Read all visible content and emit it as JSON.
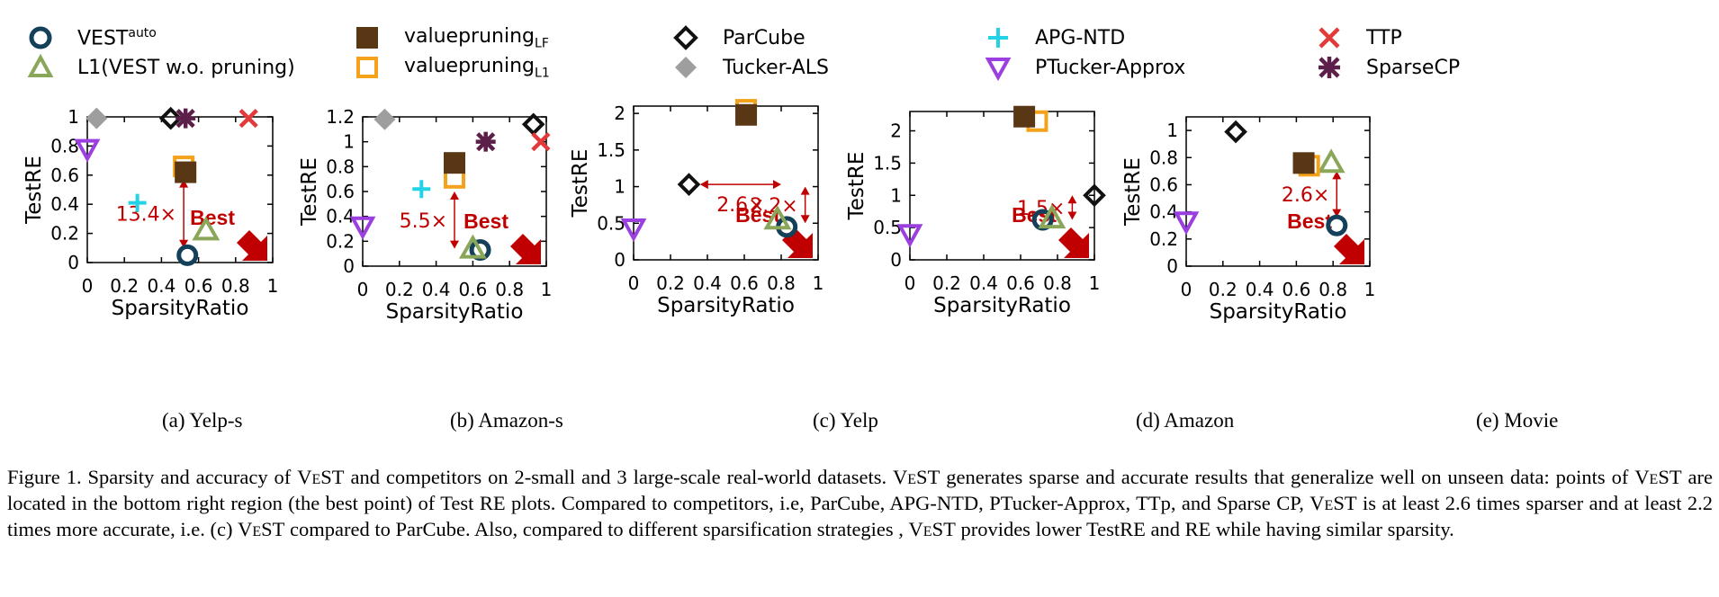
{
  "legend": {
    "vest_auto": {
      "base": "VEST",
      "sup": "auto"
    },
    "l1": "L1(VEST w.o. pruning)",
    "vp_lf": {
      "base": "valuepruning",
      "sub": "LF"
    },
    "vp_l1": {
      "base": "valuepruning",
      "sub": "L1"
    },
    "parcube": "ParCube",
    "tucker_als": "Tucker-ALS",
    "apg_ntd": "APG-NTD",
    "ptucker": "PTucker-Approx",
    "ttp": "TTP",
    "sparsecp": "SparseCP"
  },
  "colors": {
    "vest_auto": "#14405a",
    "l1": "#8aa659",
    "vp_lf": "#5a3714",
    "vp_l1": "#f4a21c",
    "parcube": "#111111",
    "tucker_als": "#9e9e9e",
    "apg_ntd": "#22d3e6",
    "ptucker": "#9b3fe0",
    "ttp": "#e23a3a",
    "sparsecp": "#5c1f4a",
    "annotation": "#c00000"
  },
  "chart_data": [
    {
      "type": "scatter",
      "caption": "(a) Yelp-s",
      "xlabel": "SparsityRatio",
      "ylabel": "TestRE",
      "xlim": [
        0,
        1
      ],
      "ylim": [
        0,
        1
      ],
      "xticks": [
        "0",
        "0.2",
        "0.4",
        "0.6",
        "0.8",
        "1"
      ],
      "yticks": [
        "0",
        "0.2",
        "0.4",
        "0.6",
        "0.8",
        "1"
      ],
      "points": [
        {
          "series": "vest_auto",
          "x": 0.54,
          "y": 0.05
        },
        {
          "series": "l1",
          "x": 0.64,
          "y": 0.22
        },
        {
          "series": "vp_l1",
          "x": 0.52,
          "y": 0.66
        },
        {
          "series": "vp_lf",
          "x": 0.53,
          "y": 0.62
        },
        {
          "series": "parcube",
          "x": 0.45,
          "y": 0.99
        },
        {
          "series": "sparsecp",
          "x": 0.53,
          "y": 0.99
        },
        {
          "series": "tucker_als",
          "x": 0.05,
          "y": 0.99
        },
        {
          "series": "ttp",
          "x": 0.87,
          "y": 0.99
        },
        {
          "series": "apg_ntd",
          "x": 0.27,
          "y": 0.41
        },
        {
          "series": "ptucker",
          "x": 0.0,
          "y": 0.78
        }
      ],
      "annotations": [
        {
          "label": "13.4×",
          "type": "vertical",
          "x": 0.52,
          "y1": 0.57,
          "y2": 0.1
        }
      ],
      "best": {
        "label": "Best"
      }
    },
    {
      "type": "scatter",
      "caption": "(b) Amazon-s",
      "xlabel": "SparsityRatio",
      "ylabel": "TestRE",
      "xlim": [
        0,
        1
      ],
      "ylim": [
        0,
        1.2
      ],
      "xticks": [
        "0",
        "0.2",
        "0.4",
        "0.6",
        "0.8",
        "1"
      ],
      "yticks": [
        "0",
        "0.2",
        "0.4",
        "0.6",
        "0.8",
        "1",
        "1.2"
      ],
      "points": [
        {
          "series": "vest_auto",
          "x": 0.64,
          "y": 0.13
        },
        {
          "series": "l1",
          "x": 0.6,
          "y": 0.14
        },
        {
          "series": "vp_l1",
          "x": 0.5,
          "y": 0.71
        },
        {
          "series": "vp_lf",
          "x": 0.5,
          "y": 0.83
        },
        {
          "series": "parcube",
          "x": 0.93,
          "y": 1.14
        },
        {
          "series": "sparsecp",
          "x": 0.67,
          "y": 1.0
        },
        {
          "series": "tucker_als",
          "x": 0.12,
          "y": 1.18
        },
        {
          "series": "ttp",
          "x": 0.97,
          "y": 1.0
        },
        {
          "series": "apg_ntd",
          "x": 0.32,
          "y": 0.62
        },
        {
          "series": "ptucker",
          "x": 0.0,
          "y": 0.32
        }
      ],
      "annotations": [
        {
          "label": "5.5×",
          "type": "vertical",
          "x": 0.5,
          "y1": 0.6,
          "y2": 0.14
        }
      ],
      "best": {
        "label": "Best"
      }
    },
    {
      "type": "scatter",
      "caption": "(c) Yelp",
      "xlabel": "SparsityRatio",
      "ylabel": "TestRE",
      "xlim": [
        0,
        1
      ],
      "ylim": [
        0,
        2.1
      ],
      "xticks": [
        "0",
        "0.2",
        "0.4",
        "0.6",
        "0.8",
        "1"
      ],
      "yticks": [
        "0",
        "0.5",
        "1",
        "1.5",
        "2"
      ],
      "points": [
        {
          "series": "vest_auto",
          "x": 0.83,
          "y": 0.45
        },
        {
          "series": "l1",
          "x": 0.78,
          "y": 0.55
        },
        {
          "series": "vp_l1",
          "x": 0.61,
          "y": 2.05
        },
        {
          "series": "vp_lf",
          "x": 0.61,
          "y": 1.98
        },
        {
          "series": "parcube",
          "x": 0.3,
          "y": 1.03
        },
        {
          "series": "ptucker",
          "x": 0.0,
          "y": 0.43
        }
      ],
      "annotations": [
        {
          "label": "2.6×",
          "type": "horizontal",
          "y": 1.03,
          "x1": 0.36,
          "x2": 0.8
        },
        {
          "label": "2.2×",
          "type": "vertical",
          "x": 0.93,
          "y1": 1.0,
          "y2": 0.5
        }
      ],
      "best": {
        "label": "Best"
      }
    },
    {
      "type": "scatter",
      "caption": "(d) Amazon",
      "xlabel": "SparsityRatio",
      "ylabel": "TestRE",
      "xlim": [
        0,
        1
      ],
      "ylim": [
        0,
        2.3
      ],
      "xticks": [
        "0",
        "0.2",
        "0.4",
        "0.6",
        "0.8",
        "1"
      ],
      "yticks": [
        "0",
        "0.5",
        "1",
        "1.5",
        "2"
      ],
      "points": [
        {
          "series": "vest_auto",
          "x": 0.72,
          "y": 0.62
        },
        {
          "series": "l1",
          "x": 0.77,
          "y": 0.64
        },
        {
          "series": "vp_l1",
          "x": 0.69,
          "y": 2.15
        },
        {
          "series": "vp_lf",
          "x": 0.62,
          "y": 2.22
        },
        {
          "series": "parcube",
          "x": 1.0,
          "y": 1.0
        },
        {
          "series": "ptucker",
          "x": 0.0,
          "y": 0.4
        }
      ],
      "annotations": [
        {
          "label": "1.5×",
          "type": "vertical",
          "x": 0.88,
          "y1": 1.0,
          "y2": 0.62
        }
      ],
      "best": {
        "label": "Best"
      }
    },
    {
      "type": "scatter",
      "caption": "(e) Movie",
      "xlabel": "SparsityRatio",
      "ylabel": "TestRE",
      "xlim": [
        0,
        1
      ],
      "ylim": [
        0,
        1.1
      ],
      "xticks": [
        "0",
        "0.2",
        "0.4",
        "0.6",
        "0.8",
        "1"
      ],
      "yticks": [
        "0",
        "0.2",
        "0.4",
        "0.6",
        "0.8",
        "1"
      ],
      "points": [
        {
          "series": "vest_auto",
          "x": 0.82,
          "y": 0.3
        },
        {
          "series": "l1",
          "x": 0.79,
          "y": 0.76
        },
        {
          "series": "vp_l1",
          "x": 0.67,
          "y": 0.74
        },
        {
          "series": "vp_lf",
          "x": 0.64,
          "y": 0.76
        },
        {
          "series": "parcube",
          "x": 0.27,
          "y": 0.99
        },
        {
          "series": "ptucker",
          "x": 0.0,
          "y": 0.33
        }
      ],
      "annotations": [
        {
          "label": "2.6×",
          "type": "vertical",
          "x": 0.82,
          "y1": 0.7,
          "y2": 0.36
        }
      ],
      "best": {
        "label": "Best"
      }
    }
  ],
  "figure_caption": {
    "lead": "Figure 1.  Sparsity and accuracy of ",
    "name": "VeST",
    "parts": [
      " and competitors on 2-small and 3 large-scale real-world datasets. ",
      " generates sparse and accurate results that generalize well on unseen data: points of ",
      " are located in the bottom right region (the best point) of Test RE plots. Compared to competitors, i.e, ParCube, APG-NTD, PTucker-Approx, TTp, and Sparse CP, ",
      " is at least 2.6 times sparser and at least 2.2 times more accurate, i.e. (c) ",
      " compared to ParCube. Also, compared to different sparsification strategies , ",
      " provides lower TestRE and RE while having similar sparsity."
    ]
  }
}
